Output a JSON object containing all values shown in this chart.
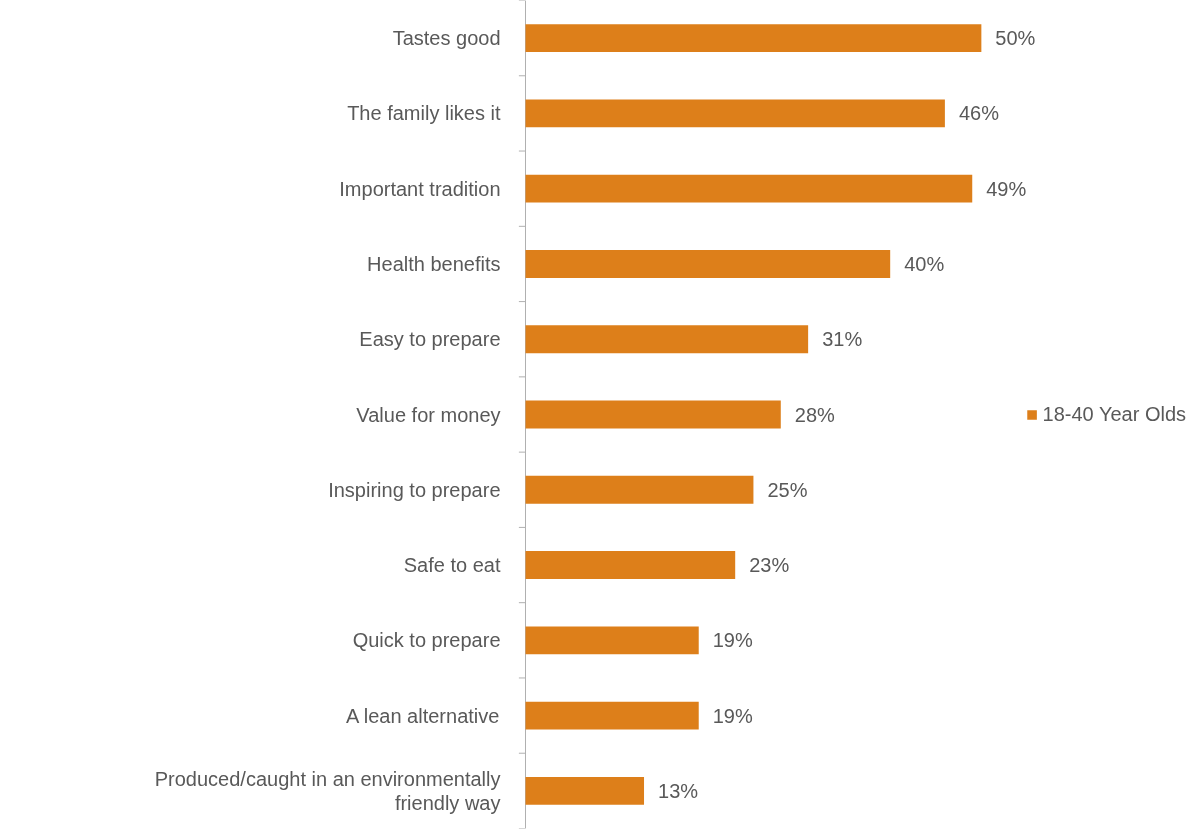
{
  "chart_data": {
    "type": "bar",
    "orientation": "horizontal",
    "categories": [
      "Tastes good",
      "The family likes it",
      "Important tradition",
      "Health benefits",
      "Easy to prepare",
      "Value for money",
      "Inspiring to prepare",
      "Safe to eat",
      "Quick to prepare",
      "A lean alternative",
      "Produced/caught in an environmentally friendly way"
    ],
    "series": [
      {
        "name": "18-40 Year Olds",
        "color": "#dd7f1a",
        "values": [
          50,
          46,
          49,
          40,
          31,
          28,
          25,
          23,
          19,
          19,
          13
        ],
        "value_labels": [
          "50%",
          "46%",
          "49%",
          "40%",
          "31%",
          "28%",
          "25%",
          "23%",
          "19%",
          "19%",
          "13%"
        ]
      }
    ],
    "legend": "right"
  }
}
